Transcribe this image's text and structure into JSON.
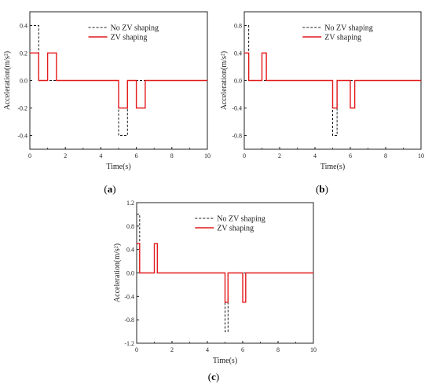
{
  "chart_data": [
    {
      "type": "line",
      "panel_label_prefix": "(",
      "panel_label_letter": "a",
      "panel_label_suffix": ")",
      "xlabel": "Time(s)",
      "ylabel": "Acceleration(m/s²)",
      "xlim": [
        0,
        10
      ],
      "ylim": [
        -0.5,
        0.5
      ],
      "xticks": [
        0,
        2,
        4,
        6,
        8,
        10
      ],
      "xtick_labels": [
        "0",
        "2",
        "4",
        "6",
        "8",
        "10"
      ],
      "yticks": [
        -0.4,
        -0.2,
        0.0,
        0.2,
        0.4
      ],
      "ytick_labels": [
        "-0.4",
        "-0.2",
        "0.0",
        "0.2",
        "0.4"
      ],
      "grid": false,
      "legend_position": "top-center",
      "series": [
        {
          "name": "No ZV shaping",
          "color": "#1a1a1a",
          "style": "dashed",
          "x": [
            0,
            0.5,
            0.5,
            5.0,
            5.0,
            5.5,
            5.5,
            10
          ],
          "y": [
            0.4,
            0.4,
            0.0,
            0.0,
            -0.4,
            -0.4,
            0.0,
            0.0
          ]
        },
        {
          "name": "ZV shaping",
          "color": "#e31a1c",
          "style": "solid",
          "x": [
            0,
            0.5,
            0.5,
            1.0,
            1.0,
            1.5,
            1.5,
            5.0,
            5.0,
            5.5,
            5.5,
            6.0,
            6.0,
            6.5,
            6.5,
            10
          ],
          "y": [
            0.2,
            0.2,
            0.0,
            0.0,
            0.2,
            0.2,
            0.0,
            0.0,
            -0.2,
            -0.2,
            0.0,
            0.0,
            -0.2,
            -0.2,
            0.0,
            0.0
          ]
        }
      ]
    },
    {
      "type": "line",
      "panel_label_prefix": "(",
      "panel_label_letter": "b",
      "panel_label_suffix": ")",
      "xlabel": "Time(s)",
      "ylabel": "Acceleration(m/s²)",
      "xlim": [
        0,
        10
      ],
      "ylim": [
        -1.0,
        1.0
      ],
      "xticks": [
        0,
        2,
        4,
        6,
        8,
        10
      ],
      "xtick_labels": [
        "0",
        "2",
        "4",
        "6",
        "8",
        "10"
      ],
      "yticks": [
        -0.8,
        -0.4,
        0.0,
        0.4,
        0.8
      ],
      "ytick_labels": [
        "-0.8",
        "-0.4",
        "0.0",
        "0.4",
        "0.8"
      ],
      "grid": false,
      "legend_position": "top-center",
      "series": [
        {
          "name": "No ZV shaping",
          "color": "#1a1a1a",
          "style": "dashed",
          "x": [
            0,
            0.25,
            0.25,
            5.0,
            5.0,
            5.25,
            5.25,
            10
          ],
          "y": [
            0.8,
            0.8,
            0.0,
            0.0,
            -0.8,
            -0.8,
            0.0,
            0.0
          ]
        },
        {
          "name": "ZV shaping",
          "color": "#e31a1c",
          "style": "solid",
          "x": [
            0,
            0.25,
            0.25,
            1.0,
            1.0,
            1.25,
            1.25,
            5.0,
            5.0,
            5.25,
            5.25,
            6.0,
            6.0,
            6.25,
            6.25,
            10
          ],
          "y": [
            0.4,
            0.4,
            0.0,
            0.0,
            0.4,
            0.4,
            0.0,
            0.0,
            -0.4,
            -0.4,
            0.0,
            0.0,
            -0.4,
            -0.4,
            0.0,
            0.0
          ]
        }
      ]
    },
    {
      "type": "line",
      "panel_label_prefix": "(",
      "panel_label_letter": "c",
      "panel_label_suffix": ")",
      "xlabel": "Time(s)",
      "ylabel": "Acceleration(m/s²)",
      "xlim": [
        0,
        10
      ],
      "ylim": [
        -1.2,
        1.2
      ],
      "xticks": [
        0,
        2,
        4,
        6,
        8,
        10
      ],
      "xtick_labels": [
        "0",
        "2",
        "4",
        "6",
        "8",
        "10"
      ],
      "yticks": [
        -1.2,
        -0.8,
        -0.4,
        0.0,
        0.4,
        0.8,
        1.2
      ],
      "ytick_labels": [
        "-1.2",
        "-0.8",
        "-0.4",
        "0.0",
        "0.4",
        "0.8",
        "1.2"
      ],
      "grid": false,
      "legend_position": "top-center",
      "series": [
        {
          "name": "No ZV shaping",
          "color": "#1a1a1a",
          "style": "dashed",
          "x": [
            0,
            0.17,
            0.17,
            5.0,
            5.0,
            5.17,
            5.17,
            10
          ],
          "y": [
            1.0,
            1.0,
            0.0,
            0.0,
            -1.0,
            -1.0,
            0.0,
            0.0
          ]
        },
        {
          "name": "ZV shaping",
          "color": "#e31a1c",
          "style": "solid",
          "x": [
            0,
            0.17,
            0.17,
            1.0,
            1.0,
            1.17,
            1.17,
            5.0,
            5.0,
            5.17,
            5.17,
            6.0,
            6.0,
            6.17,
            6.17,
            10
          ],
          "y": [
            0.5,
            0.5,
            0.0,
            0.0,
            0.5,
            0.5,
            0.0,
            0.0,
            -0.5,
            -0.5,
            0.0,
            0.0,
            -0.5,
            -0.5,
            0.0,
            0.0
          ]
        }
      ]
    }
  ]
}
